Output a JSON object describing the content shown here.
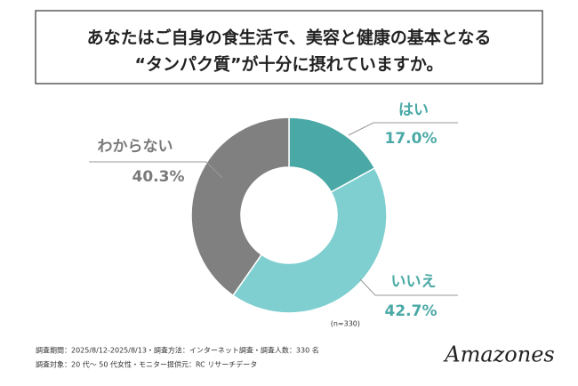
{
  "chart_data": {
    "type": "donut",
    "title": [
      "あなたはご自身の食生活で、美容と健康の基本となる",
      "“タンパク質”が十分に摂れていますか。"
    ],
    "categories": [
      "はい",
      "いいえ",
      "わからない"
    ],
    "values": [
      17.0,
      42.7,
      40.3
    ],
    "value_labels": [
      "17.0%",
      "42.7%",
      "40.3%"
    ],
    "colors": [
      "#4aa9a6",
      "#80cfd0",
      "#808080"
    ],
    "label_colors": [
      "#4aa9a6",
      "#4aa9a6",
      "#7a7a7a"
    ],
    "note": "(n=330)"
  },
  "footer": [
    "調査期間：2025/8/12-2025/8/13・調査方法：インターネット調査・調査人数：330 名",
    "調査対象：20 代～ 50 代女性・モニター提供元：RC リサーチデータ"
  ],
  "logo": "Amazones"
}
